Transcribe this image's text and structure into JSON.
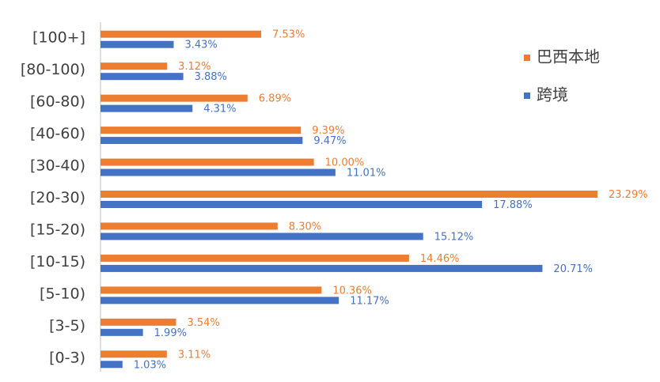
{
  "chart_data": {
    "type": "bar",
    "orientation": "horizontal",
    "categories": [
      "[100+]",
      "[80-100)",
      "[60-80)",
      "[40-60)",
      "[30-40)",
      "[20-30)",
      "[15-20)",
      "[10-15)",
      "[5-10)",
      "[3-5)",
      "[0-3)"
    ],
    "series": [
      {
        "name": "巴西本地",
        "color": "#ed7d31",
        "values": [
          7.53,
          3.12,
          6.89,
          9.39,
          10.0,
          23.29,
          8.3,
          14.46,
          10.36,
          3.54,
          3.11
        ],
        "value_labels": [
          "7.53%",
          "3.12%",
          "6.89%",
          "9.39%",
          "10.00%",
          "23.29%",
          "8.30%",
          "14.46%",
          "10.36%",
          "3.54%",
          "3.11%"
        ]
      },
      {
        "name": "跨境",
        "color": "#4472c4",
        "values": [
          3.43,
          3.88,
          4.31,
          9.47,
          11.01,
          17.88,
          15.12,
          20.71,
          11.17,
          1.99,
          1.03
        ],
        "value_labels": [
          "3.43%",
          "3.88%",
          "4.31%",
          "9.47%",
          "11.01%",
          "17.88%",
          "15.12%",
          "20.71%",
          "11.17%",
          "1.99%",
          "1.03%"
        ]
      }
    ],
    "legend": "right"
  }
}
